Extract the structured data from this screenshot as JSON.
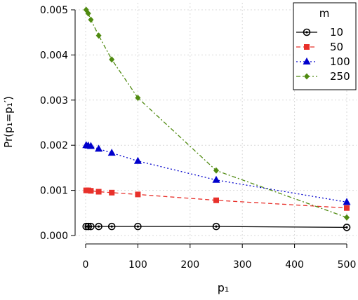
{
  "chart_data": {
    "type": "line",
    "xlabel": "p₁",
    "ylabel": "Pr(p₁=p₁′)",
    "xlim": [
      0,
      500
    ],
    "ylim": [
      0,
      0.005
    ],
    "x_ticks": [
      0,
      100,
      200,
      300,
      400,
      500
    ],
    "x_tick_labels": [
      "0",
      "100",
      "200",
      "300",
      "400",
      "500"
    ],
    "y_ticks": [
      0,
      0.001,
      0.002,
      0.003,
      0.004,
      0.005
    ],
    "y_tick_labels": [
      "0.000",
      "0.001",
      "0.002",
      "0.003",
      "0.004",
      "0.005"
    ],
    "grid": true,
    "legend": {
      "title": "m",
      "position": "top-right"
    },
    "x": [
      1,
      5,
      10,
      25,
      50,
      100,
      250,
      500
    ],
    "series": [
      {
        "name": "10",
        "color": "#000000",
        "marker": "circle-open",
        "dash": "solid",
        "values": [
          0.0002,
          0.0002,
          0.0002,
          0.0002,
          0.0002,
          0.0002,
          0.0002,
          0.00018
        ]
      },
      {
        "name": "50",
        "color": "#e8302a",
        "marker": "square",
        "dash": "dashed",
        "values": [
          0.001,
          0.001,
          0.00099,
          0.00097,
          0.00095,
          0.00091,
          0.00078,
          0.00061
        ]
      },
      {
        "name": "100",
        "color": "#0000cc",
        "marker": "triangle",
        "dash": "dotted",
        "values": [
          0.002,
          0.00199,
          0.00198,
          0.00192,
          0.00183,
          0.00165,
          0.00123,
          0.00074
        ]
      },
      {
        "name": "250",
        "color": "#4f8a10",
        "marker": "diamond",
        "dash": "dashdot",
        "values": [
          0.005,
          0.00492,
          0.00478,
          0.00443,
          0.0039,
          0.00305,
          0.00144,
          0.0004
        ]
      }
    ]
  }
}
